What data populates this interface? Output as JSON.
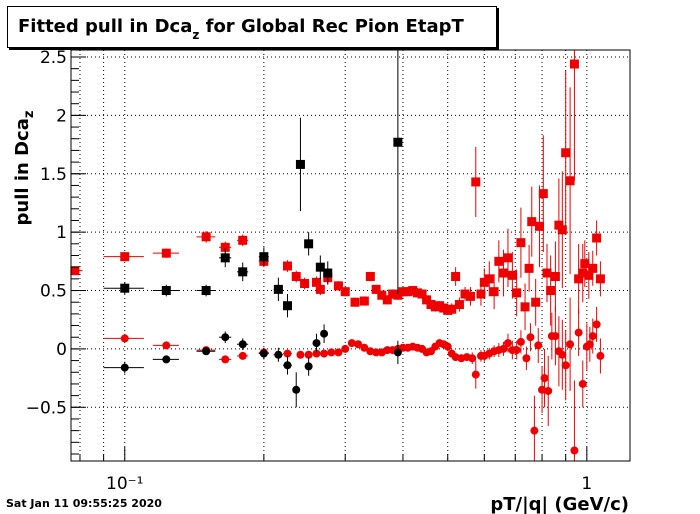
{
  "title": {
    "prefix": "Fitted pull in Dca",
    "subscript": "z",
    "suffix": " for Global Rec Pion EtapT"
  },
  "timestamp": "Sat Jan 11 09:55:25 2020",
  "colors": {
    "black": "#000000",
    "red": "#ee0000"
  },
  "chart_data": {
    "type": "scatter",
    "title": "Fitted pull in Dca_z for Global Rec Pion EtapT",
    "xlabel": "pT/|q| (GeV/c)",
    "ylabel": "pull in Dca_z",
    "x_scale": "log",
    "xlim": [
      0.0765,
      1.24
    ],
    "ylim": [
      -0.96,
      2.56
    ],
    "grid": true,
    "x_tick_labels": [
      "10⁻¹",
      "1"
    ],
    "x_major_ticks": [
      0.1,
      1
    ],
    "x_minor_ticks": [
      0.08,
      0.09,
      0.2,
      0.3,
      0.4,
      0.5,
      0.6,
      0.7,
      0.8,
      0.9
    ],
    "y_ticks": [
      -0.5,
      0,
      0.5,
      1,
      1.5,
      2,
      2.5
    ],
    "y_tick_labels": [
      "−0.5",
      "0",
      "0.5",
      "1",
      "1.5",
      "2",
      "2.5"
    ],
    "series": [
      {
        "color": "red",
        "marker": "square",
        "points": [
          [
            0.078,
            0.67,
            0.003,
            0.03
          ],
          [
            0.1,
            0.79,
            0.01,
            0.04
          ],
          [
            0.123,
            0.82,
            0.008,
            0.04
          ],
          [
            0.15,
            0.96,
            0.007,
            0.05
          ],
          [
            0.165,
            0.87,
            0.005,
            0.05
          ],
          [
            0.18,
            0.93,
            0.005,
            0.05
          ],
          [
            0.2,
            0.75,
            0.005,
            0.05
          ],
          [
            0.225,
            0.71,
            0.005,
            0.05
          ],
          [
            0.235,
            0.62,
            0.004,
            0.05
          ],
          [
            0.245,
            0.56,
            0.004,
            0.05
          ],
          [
            0.26,
            0.57,
            0.004,
            0.05
          ],
          [
            0.265,
            0.51,
            0.003,
            0.05
          ],
          [
            0.275,
            0.61,
            0.003,
            0.05
          ],
          [
            0.29,
            0.54,
            0.003,
            0.04
          ],
          [
            0.3,
            0.49,
            0.003,
            0.04
          ],
          [
            0.315,
            0.4,
            0.003,
            0.04
          ],
          [
            0.33,
            0.41,
            0.003,
            0.04
          ],
          [
            0.34,
            0.62,
            0.003,
            0.04
          ],
          [
            0.35,
            0.51,
            0.003,
            0.04
          ],
          [
            0.36,
            0.46,
            0.003,
            0.04
          ],
          [
            0.37,
            0.42,
            0.003,
            0.04
          ],
          [
            0.38,
            0.47,
            0.003,
            0.04
          ],
          [
            0.39,
            0.46,
            0.003,
            0.04
          ],
          [
            0.4,
            0.49,
            0.003,
            0.04
          ],
          [
            0.41,
            0.49,
            0.003,
            0.04
          ],
          [
            0.42,
            0.5,
            0.003,
            0.04
          ],
          [
            0.43,
            0.48,
            0.003,
            0.04
          ],
          [
            0.44,
            0.47,
            0.003,
            0.04
          ],
          [
            0.45,
            0.42,
            0.003,
            0.04
          ],
          [
            0.46,
            0.38,
            0.003,
            0.04
          ],
          [
            0.47,
            0.36,
            0.003,
            0.04
          ],
          [
            0.48,
            0.37,
            0.003,
            0.04
          ],
          [
            0.49,
            0.35,
            0.003,
            0.04
          ],
          [
            0.5,
            0.33,
            0.003,
            0.04
          ],
          [
            0.51,
            0.34,
            0.003,
            0.05
          ],
          [
            0.52,
            0.62,
            0.003,
            0.08
          ],
          [
            0.53,
            0.38,
            0.003,
            0.06
          ],
          [
            0.545,
            0.47,
            0.003,
            0.06
          ],
          [
            0.56,
            0.45,
            0.003,
            0.08
          ],
          [
            0.575,
            1.43,
            0.003,
            0.3
          ],
          [
            0.59,
            0.47,
            0.004,
            0.1
          ],
          [
            0.6,
            0.57,
            0.004,
            0.12
          ],
          [
            0.615,
            0.6,
            0.004,
            0.15
          ],
          [
            0.63,
            0.49,
            0.004,
            0.15
          ],
          [
            0.645,
            0.75,
            0.004,
            0.18
          ],
          [
            0.66,
            0.65,
            0.004,
            0.2
          ],
          [
            0.675,
            0.78,
            0.004,
            0.25
          ],
          [
            0.69,
            0.63,
            0.004,
            0.2
          ],
          [
            0.705,
            0.48,
            0.004,
            0.2
          ],
          [
            0.72,
            0.91,
            0.004,
            0.3
          ],
          [
            0.735,
            0.36,
            0.005,
            0.2
          ],
          [
            0.75,
            0.69,
            0.005,
            0.2
          ],
          [
            0.76,
            1.09,
            0.005,
            0.3
          ],
          [
            0.775,
            0.4,
            0.005,
            0.2
          ],
          [
            0.79,
            1.05,
            0.005,
            0.35
          ],
          [
            0.805,
            1.33,
            0.005,
            0.5
          ],
          [
            0.82,
            0.65,
            0.005,
            0.25
          ],
          [
            0.835,
            0.5,
            0.005,
            0.3
          ],
          [
            0.855,
            0.62,
            0.005,
            0.3
          ],
          [
            0.87,
            1.06,
            0.006,
            0.4
          ],
          [
            0.885,
            1.02,
            0.006,
            0.5
          ],
          [
            0.9,
            1.68,
            0.006,
            0.7
          ],
          [
            0.92,
            1.44,
            0.006,
            0.8
          ],
          [
            0.94,
            2.44,
            0.006,
            1.0
          ],
          [
            0.96,
            0.6,
            0.008,
            0.3
          ],
          [
            0.98,
            0.65,
            0.008,
            0.25
          ],
          [
            0.99,
            0.73,
            0.008,
            0.2
          ],
          [
            1.01,
            0.63,
            0.008,
            0.2
          ],
          [
            1.03,
            0.69,
            0.008,
            0.15
          ],
          [
            1.05,
            0.95,
            0.008,
            0.15
          ],
          [
            1.07,
            0.6,
            0.008,
            0.15
          ]
        ]
      },
      {
        "color": "red",
        "marker": "circle",
        "points": [
          [
            0.1,
            0.09,
            0.01,
            0.02
          ],
          [
            0.123,
            0.03,
            0.008,
            0.02
          ],
          [
            0.15,
            -0.01,
            0.007,
            0.02
          ],
          [
            0.165,
            -0.09,
            0.005,
            0.02
          ],
          [
            0.18,
            -0.06,
            0.005,
            0.02
          ],
          [
            0.2,
            -0.03,
            0.005,
            0.02
          ],
          [
            0.225,
            -0.04,
            0.005,
            0.02
          ],
          [
            0.24,
            -0.05,
            0.004,
            0.02
          ],
          [
            0.25,
            -0.05,
            0.004,
            0.02
          ],
          [
            0.26,
            -0.04,
            0.004,
            0.02
          ],
          [
            0.27,
            -0.04,
            0.003,
            0.02
          ],
          [
            0.28,
            -0.03,
            0.003,
            0.02
          ],
          [
            0.29,
            -0.03,
            0.003,
            0.02
          ],
          [
            0.3,
            0.0,
            0.003,
            0.02
          ],
          [
            0.31,
            0.05,
            0.003,
            0.02
          ],
          [
            0.32,
            0.04,
            0.003,
            0.02
          ],
          [
            0.33,
            0.01,
            0.003,
            0.02
          ],
          [
            0.34,
            -0.02,
            0.003,
            0.02
          ],
          [
            0.35,
            -0.03,
            0.003,
            0.02
          ],
          [
            0.36,
            -0.03,
            0.003,
            0.02
          ],
          [
            0.37,
            -0.01,
            0.003,
            0.02
          ],
          [
            0.38,
            -0.01,
            0.003,
            0.02
          ],
          [
            0.39,
            0.0,
            0.003,
            0.02
          ],
          [
            0.4,
            0.01,
            0.003,
            0.02
          ],
          [
            0.41,
            0.01,
            0.003,
            0.02
          ],
          [
            0.42,
            0.02,
            0.003,
            0.02
          ],
          [
            0.43,
            0.01,
            0.003,
            0.02
          ],
          [
            0.44,
            0.0,
            0.003,
            0.02
          ],
          [
            0.45,
            -0.03,
            0.003,
            0.02
          ],
          [
            0.46,
            -0.02,
            0.003,
            0.02
          ],
          [
            0.47,
            0.02,
            0.003,
            0.02
          ],
          [
            0.48,
            0.05,
            0.003,
            0.02
          ],
          [
            0.49,
            0.04,
            0.003,
            0.02
          ],
          [
            0.5,
            0.02,
            0.003,
            0.02
          ],
          [
            0.51,
            -0.04,
            0.003,
            0.02
          ],
          [
            0.52,
            -0.07,
            0.003,
            0.02
          ],
          [
            0.535,
            -0.08,
            0.003,
            0.03
          ],
          [
            0.55,
            -0.07,
            0.003,
            0.03
          ],
          [
            0.565,
            -0.08,
            0.003,
            0.05
          ],
          [
            0.575,
            -0.22,
            0.003,
            0.12
          ],
          [
            0.59,
            -0.06,
            0.004,
            0.05
          ],
          [
            0.6,
            -0.06,
            0.004,
            0.05
          ],
          [
            0.615,
            -0.04,
            0.004,
            0.05
          ],
          [
            0.63,
            -0.02,
            0.004,
            0.05
          ],
          [
            0.645,
            -0.01,
            0.004,
            0.06
          ],
          [
            0.66,
            0.0,
            0.004,
            0.06
          ],
          [
            0.675,
            0.05,
            0.004,
            0.08
          ],
          [
            0.69,
            -0.01,
            0.004,
            0.08
          ],
          [
            0.705,
            -0.01,
            0.004,
            0.08
          ],
          [
            0.72,
            0.06,
            0.004,
            0.1
          ],
          [
            0.74,
            -0.08,
            0.005,
            0.1
          ],
          [
            0.755,
            0.1,
            0.005,
            0.12
          ],
          [
            0.77,
            -0.7,
            0.005,
            0.3
          ],
          [
            0.785,
            0.03,
            0.005,
            0.15
          ],
          [
            0.8,
            -0.35,
            0.005,
            0.2
          ],
          [
            0.81,
            -0.25,
            0.005,
            0.25
          ],
          [
            0.825,
            -0.36,
            0.005,
            0.3
          ],
          [
            0.84,
            0.11,
            0.005,
            0.2
          ],
          [
            0.855,
            0.11,
            0.005,
            0.25
          ],
          [
            0.87,
            -0.02,
            0.006,
            0.3
          ],
          [
            0.885,
            -0.05,
            0.006,
            0.3
          ],
          [
            0.9,
            -0.14,
            0.006,
            0.3
          ],
          [
            0.92,
            0.04,
            0.006,
            0.4
          ],
          [
            0.94,
            -0.87,
            0.006,
            0.6
          ],
          [
            0.96,
            0.14,
            0.008,
            0.2
          ],
          [
            0.98,
            -0.3,
            0.008,
            0.2
          ],
          [
            1.0,
            0.02,
            0.008,
            0.2
          ],
          [
            1.015,
            0.04,
            0.008,
            0.15
          ],
          [
            1.03,
            0.11,
            0.008,
            0.15
          ],
          [
            1.05,
            0.21,
            0.008,
            0.15
          ],
          [
            1.07,
            -0.06,
            0.008,
            0.15
          ]
        ]
      },
      {
        "color": "black",
        "marker": "square",
        "points": [
          [
            0.1,
            0.52,
            0.01,
            0.05
          ],
          [
            0.123,
            0.5,
            0.008,
            0.05
          ],
          [
            0.15,
            0.5,
            0.007,
            0.05
          ],
          [
            0.165,
            0.78,
            0.005,
            0.08
          ],
          [
            0.18,
            0.66,
            0.005,
            0.08
          ],
          [
            0.2,
            0.79,
            0.005,
            0.08
          ],
          [
            0.215,
            0.51,
            0.005,
            0.1
          ],
          [
            0.225,
            0.37,
            0.005,
            0.1
          ],
          [
            0.24,
            1.58,
            0.004,
            0.4
          ],
          [
            0.25,
            0.9,
            0.004,
            0.1
          ],
          [
            0.265,
            0.7,
            0.003,
            0.1
          ],
          [
            0.275,
            0.65,
            0.003,
            0.1
          ],
          [
            0.39,
            1.77,
            0.005,
            1.3
          ]
        ]
      },
      {
        "color": "black",
        "marker": "circle",
        "points": [
          [
            0.1,
            -0.16,
            0.01,
            0.05
          ],
          [
            0.123,
            -0.09,
            0.008,
            0.03
          ],
          [
            0.15,
            -0.02,
            0.007,
            0.03
          ],
          [
            0.165,
            0.1,
            0.005,
            0.05
          ],
          [
            0.18,
            0.04,
            0.005,
            0.05
          ],
          [
            0.2,
            -0.04,
            0.005,
            0.05
          ],
          [
            0.215,
            -0.05,
            0.005,
            0.06
          ],
          [
            0.225,
            -0.14,
            0.005,
            0.08
          ],
          [
            0.235,
            -0.35,
            0.004,
            0.15
          ],
          [
            0.25,
            -0.15,
            0.004,
            0.08
          ],
          [
            0.26,
            0.05,
            0.004,
            0.08
          ],
          [
            0.27,
            0.13,
            0.003,
            0.08
          ],
          [
            0.39,
            -0.03,
            0.005,
            0.1
          ]
        ]
      }
    ]
  }
}
